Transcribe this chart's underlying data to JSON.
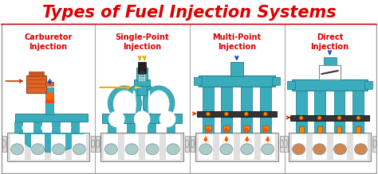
{
  "title": "Types of Fuel Injection Systems",
  "title_color": "#dd0000",
  "title_fontsize": 15,
  "bg_color": "#ffffff",
  "teal": "#3aacbc",
  "teal_dark": "#1a7a8a",
  "teal_light": "#55ccdd",
  "panel_labels": [
    "Carburetor\nInjection",
    "Single-Point\nInjection",
    "Multi-Point\nInjection",
    "Direct\nInjection"
  ],
  "label_color": "#dd0000",
  "label_fontsize": 7.0,
  "orange": "#ff8800",
  "flame_orange": "#ff5500",
  "flame_red": "#dd2200",
  "red_arrow": "#cc3300",
  "blue_arrow": "#0044cc",
  "gold": "#ddaa00",
  "carb_orange": "#dd6622",
  "black": "#111111",
  "gray_block": "#c0c0c0",
  "gray_dark": "#888888",
  "gray_light": "#e0e0e0",
  "white": "#ffffff",
  "panel_border": "#999999",
  "separator": "#aaaaaa"
}
